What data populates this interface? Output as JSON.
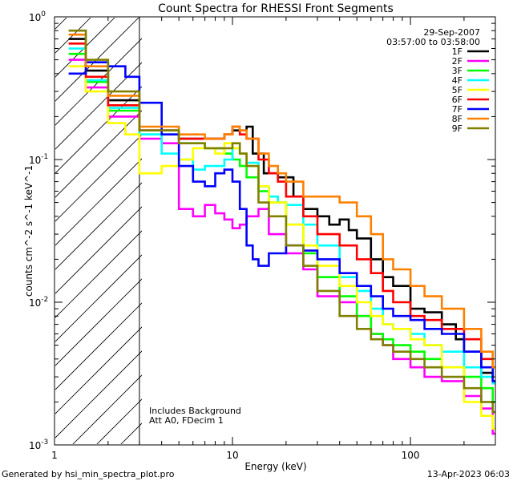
{
  "chart_data": {
    "type": "line",
    "title": "Count Spectra for RHESSI Front Segments",
    "xlabel": "Energy (keV)",
    "ylabel": "counts cm^-2 s^-1 keV^-1",
    "xscale": "log",
    "yscale": "log",
    "xlim": [
      1,
      300
    ],
    "ylim": [
      0.001,
      1
    ],
    "x_ticks": [
      {
        "value": 1,
        "label": "1"
      },
      {
        "value": 10,
        "label": "10"
      },
      {
        "value": 100,
        "label": "100"
      }
    ],
    "y_ticks": [
      {
        "value": 1,
        "label": "10"
      },
      {
        "value": 0.1,
        "label": "10"
      },
      {
        "value": 0.01,
        "label": "10"
      },
      {
        "value": 0.001,
        "label": "10"
      }
    ],
    "y_tick_exponents": [
      "0",
      "-1",
      "-2",
      "-3"
    ],
    "legend_position": "top-right",
    "date": "29-Sep-2007",
    "time_range": "03:57:00 to 03:58:00",
    "annotations": [
      "Includes Background",
      "Att A0, FDecim 1"
    ],
    "shaded_region": {
      "xmin": 1,
      "xmax": 3,
      "pattern": "diagonal hatching"
    },
    "series": [
      {
        "name": "1F",
        "color": "#000000",
        "points": [
          [
            1.2,
            0.7
          ],
          [
            1.5,
            0.42
          ],
          [
            2,
            0.26
          ],
          [
            3,
            0.16
          ],
          [
            5,
            0.14
          ],
          [
            7,
            0.14
          ],
          [
            9,
            0.15
          ],
          [
            10,
            0.16
          ],
          [
            11,
            0.16
          ],
          [
            12,
            0.17
          ],
          [
            13,
            0.11
          ],
          [
            15,
            0.08
          ],
          [
            18,
            0.075
          ],
          [
            22,
            0.055
          ],
          [
            25,
            0.045
          ],
          [
            30,
            0.04
          ],
          [
            35,
            0.035
          ],
          [
            40,
            0.038
          ],
          [
            45,
            0.032
          ],
          [
            50,
            0.028
          ],
          [
            60,
            0.02
          ],
          [
            70,
            0.015
          ],
          [
            80,
            0.013
          ],
          [
            100,
            0.009
          ],
          [
            120,
            0.0085
          ],
          [
            150,
            0.007
          ],
          [
            180,
            0.0055
          ],
          [
            200,
            0.0045
          ],
          [
            250,
            0.0032
          ],
          [
            290,
            0.0028
          ]
        ]
      },
      {
        "name": "2F",
        "color": "#ff00ff",
        "points": [
          [
            1.2,
            0.5
          ],
          [
            1.5,
            0.32
          ],
          [
            2,
            0.2
          ],
          [
            3,
            0.14
          ],
          [
            4,
            0.13
          ],
          [
            5,
            0.045
          ],
          [
            6,
            0.04
          ],
          [
            7,
            0.048
          ],
          [
            8,
            0.042
          ],
          [
            9,
            0.038
          ],
          [
            10,
            0.033
          ],
          [
            11,
            0.035
          ],
          [
            12,
            0.04
          ],
          [
            14,
            0.045
          ],
          [
            16,
            0.03
          ],
          [
            20,
            0.022
          ],
          [
            25,
            0.017
          ],
          [
            30,
            0.011
          ],
          [
            40,
            0.01
          ],
          [
            50,
            0.008
          ],
          [
            60,
            0.006
          ],
          [
            70,
            0.005
          ],
          [
            80,
            0.004
          ],
          [
            100,
            0.0035
          ],
          [
            120,
            0.003
          ],
          [
            150,
            0.0028
          ],
          [
            200,
            0.0022
          ],
          [
            250,
            0.0018
          ],
          [
            290,
            0.0012
          ]
        ]
      },
      {
        "name": "3F",
        "color": "#00ff00",
        "points": [
          [
            1.2,
            0.55
          ],
          [
            1.5,
            0.35
          ],
          [
            2,
            0.22
          ],
          [
            3,
            0.15
          ],
          [
            5,
            0.13
          ],
          [
            7,
            0.12
          ],
          [
            9,
            0.11
          ],
          [
            10,
            0.1
          ],
          [
            11,
            0.09
          ],
          [
            12,
            0.075
          ],
          [
            14,
            0.06
          ],
          [
            16,
            0.05
          ],
          [
            20,
            0.035
          ],
          [
            25,
            0.022
          ],
          [
            30,
            0.015
          ],
          [
            40,
            0.011
          ],
          [
            50,
            0.008
          ],
          [
            60,
            0.006
          ],
          [
            70,
            0.0055
          ],
          [
            80,
            0.005
          ],
          [
            100,
            0.0045
          ],
          [
            120,
            0.004
          ],
          [
            150,
            0.0035
          ],
          [
            200,
            0.003
          ],
          [
            250,
            0.0025
          ],
          [
            290,
            0.002
          ]
        ]
      },
      {
        "name": "4F",
        "color": "#00ffff",
        "points": [
          [
            1.2,
            0.6
          ],
          [
            1.5,
            0.36
          ],
          [
            2,
            0.23
          ],
          [
            3,
            0.15
          ],
          [
            4,
            0.11
          ],
          [
            5,
            0.1
          ],
          [
            6,
            0.085
          ],
          [
            7,
            0.09
          ],
          [
            8,
            0.09
          ],
          [
            9,
            0.1
          ],
          [
            10,
            0.12
          ],
          [
            11,
            0.11
          ],
          [
            12,
            0.095
          ],
          [
            14,
            0.065
          ],
          [
            16,
            0.055
          ],
          [
            18,
            0.05
          ],
          [
            20,
            0.048
          ],
          [
            25,
            0.035
          ],
          [
            30,
            0.025
          ],
          [
            40,
            0.015
          ],
          [
            50,
            0.012
          ],
          [
            60,
            0.009
          ],
          [
            70,
            0.007
          ],
          [
            80,
            0.0065
          ],
          [
            100,
            0.006
          ],
          [
            120,
            0.005
          ],
          [
            150,
            0.0045
          ],
          [
            200,
            0.0035
          ],
          [
            250,
            0.003
          ],
          [
            290,
            0.0027
          ]
        ]
      },
      {
        "name": "5F",
        "color": "#ffff00",
        "points": [
          [
            1.2,
            0.45
          ],
          [
            1.5,
            0.3
          ],
          [
            2,
            0.18
          ],
          [
            2.5,
            0.15
          ],
          [
            3,
            0.08
          ],
          [
            4,
            0.09
          ],
          [
            5,
            0.1
          ],
          [
            6,
            0.12
          ],
          [
            7,
            0.12
          ],
          [
            8,
            0.11
          ],
          [
            9,
            0.13
          ],
          [
            10,
            0.12
          ],
          [
            11,
            0.11
          ],
          [
            12,
            0.09
          ],
          [
            14,
            0.065
          ],
          [
            16,
            0.05
          ],
          [
            20,
            0.035
          ],
          [
            25,
            0.025
          ],
          [
            30,
            0.018
          ],
          [
            40,
            0.013
          ],
          [
            50,
            0.01
          ],
          [
            60,
            0.008
          ],
          [
            70,
            0.007
          ],
          [
            80,
            0.0065
          ],
          [
            100,
            0.0055
          ],
          [
            120,
            0.005
          ],
          [
            150,
            0.0035
          ],
          [
            200,
            0.002
          ],
          [
            250,
            0.0016
          ],
          [
            290,
            0.0013
          ]
        ]
      },
      {
        "name": "6F",
        "color": "#ff0000",
        "points": [
          [
            1.2,
            0.65
          ],
          [
            1.5,
            0.38
          ],
          [
            2,
            0.24
          ],
          [
            3,
            0.16
          ],
          [
            5,
            0.14
          ],
          [
            7,
            0.14
          ],
          [
            9,
            0.15
          ],
          [
            10,
            0.17
          ],
          [
            11,
            0.15
          ],
          [
            12,
            0.14
          ],
          [
            14,
            0.1
          ],
          [
            16,
            0.08
          ],
          [
            18,
            0.07
          ],
          [
            20,
            0.055
          ],
          [
            25,
            0.04
          ],
          [
            30,
            0.03
          ],
          [
            40,
            0.025
          ],
          [
            50,
            0.02
          ],
          [
            60,
            0.016
          ],
          [
            70,
            0.012
          ],
          [
            80,
            0.01
          ],
          [
            100,
            0.008
          ],
          [
            120,
            0.0075
          ],
          [
            150,
            0.0065
          ],
          [
            200,
            0.0055
          ],
          [
            250,
            0.004
          ],
          [
            290,
            0.0035
          ]
        ]
      },
      {
        "name": "7F",
        "color": "#0000ff",
        "points": [
          [
            1.2,
            0.4
          ],
          [
            1.5,
            0.48
          ],
          [
            2,
            0.45
          ],
          [
            2.5,
            0.38
          ],
          [
            3,
            0.25
          ],
          [
            4,
            0.15
          ],
          [
            5,
            0.09
          ],
          [
            6,
            0.07
          ],
          [
            7,
            0.065
          ],
          [
            8,
            0.08
          ],
          [
            9,
            0.085
          ],
          [
            10,
            0.07
          ],
          [
            11,
            0.045
          ],
          [
            12,
            0.025
          ],
          [
            13,
            0.02
          ],
          [
            14,
            0.018
          ],
          [
            16,
            0.022
          ],
          [
            20,
            0.025
          ],
          [
            25,
            0.023
          ],
          [
            30,
            0.02
          ],
          [
            40,
            0.016
          ],
          [
            50,
            0.013
          ],
          [
            60,
            0.011
          ],
          [
            70,
            0.009
          ],
          [
            80,
            0.008
          ],
          [
            100,
            0.0075
          ],
          [
            120,
            0.0065
          ],
          [
            150,
            0.006
          ],
          [
            200,
            0.0045
          ],
          [
            250,
            0.0035
          ],
          [
            290,
            0.0028
          ]
        ]
      },
      {
        "name": "8F",
        "color": "#ff8000",
        "points": [
          [
            1.2,
            0.75
          ],
          [
            1.5,
            0.45
          ],
          [
            2,
            0.28
          ],
          [
            3,
            0.17
          ],
          [
            5,
            0.15
          ],
          [
            7,
            0.14
          ],
          [
            9,
            0.15
          ],
          [
            10,
            0.17
          ],
          [
            11,
            0.16
          ],
          [
            12,
            0.14
          ],
          [
            14,
            0.11
          ],
          [
            16,
            0.09
          ],
          [
            18,
            0.08
          ],
          [
            20,
            0.07
          ],
          [
            25,
            0.055
          ],
          [
            30,
            0.055
          ],
          [
            35,
            0.055
          ],
          [
            40,
            0.05
          ],
          [
            45,
            0.05
          ],
          [
            50,
            0.04
          ],
          [
            60,
            0.03
          ],
          [
            70,
            0.02
          ],
          [
            80,
            0.017
          ],
          [
            100,
            0.013
          ],
          [
            120,
            0.011
          ],
          [
            150,
            0.009
          ],
          [
            200,
            0.0065
          ],
          [
            250,
            0.0045
          ],
          [
            290,
            0.0035
          ]
        ]
      },
      {
        "name": "9F",
        "color": "#808000",
        "points": [
          [
            1.2,
            0.8
          ],
          [
            1.5,
            0.5
          ],
          [
            2,
            0.3
          ],
          [
            3,
            0.16
          ],
          [
            5,
            0.13
          ],
          [
            7,
            0.12
          ],
          [
            9,
            0.12
          ],
          [
            10,
            0.13
          ],
          [
            11,
            0.11
          ],
          [
            12,
            0.09
          ],
          [
            14,
            0.05
          ],
          [
            16,
            0.04
          ],
          [
            20,
            0.025
          ],
          [
            25,
            0.018
          ],
          [
            30,
            0.012
          ],
          [
            40,
            0.008
          ],
          [
            50,
            0.0065
          ],
          [
            60,
            0.0055
          ],
          [
            70,
            0.005
          ],
          [
            80,
            0.0045
          ],
          [
            100,
            0.004
          ],
          [
            120,
            0.0035
          ],
          [
            150,
            0.003
          ],
          [
            200,
            0.0025
          ],
          [
            250,
            0.002
          ],
          [
            290,
            0.0017
          ]
        ]
      }
    ]
  },
  "footer": {
    "generator": "Generated by hsi_min_spectra_plot.pro",
    "timestamp": "13-Apr-2023 06:03"
  }
}
